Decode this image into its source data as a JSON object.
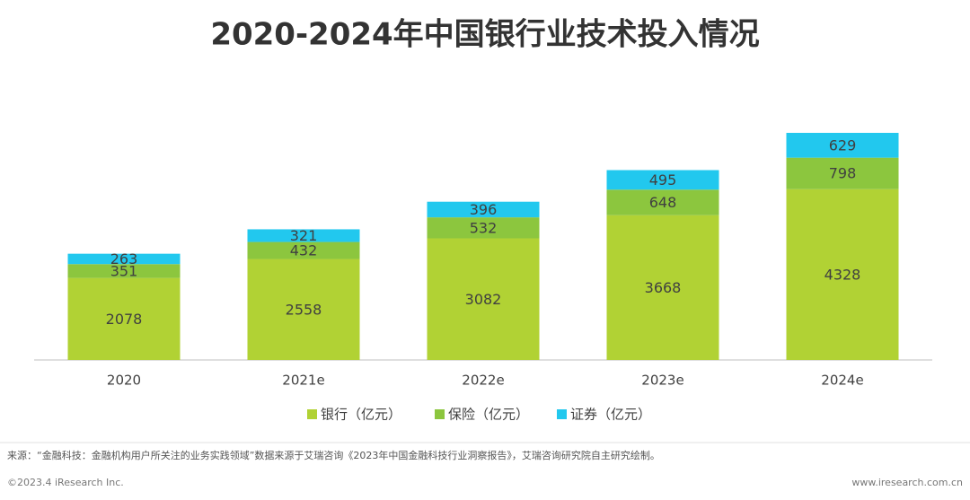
{
  "chart_data": {
    "type": "bar",
    "stacked": true,
    "title": "2020-2024年中国银行业技术投入情况",
    "categories": [
      "2020",
      "2021e",
      "2022e",
      "2023e",
      "2024e"
    ],
    "series": [
      {
        "name": "银行（亿元）",
        "color": "#b1d234",
        "values": [
          2078,
          2558,
          3082,
          3668,
          4328
        ]
      },
      {
        "name": "保险（亿元）",
        "color": "#8cc63e",
        "values": [
          351,
          432,
          532,
          648,
          798
        ]
      },
      {
        "name": "证券（亿元）",
        "color": "#22c8ee",
        "values": [
          263,
          321,
          396,
          495,
          629
        ]
      }
    ],
    "legend": "bottom"
  },
  "footer": {
    "source": "来源：“金融科技：金融机构用户所关注的业务实践领域”数据来源于艾瑞咨询《2023年中国金融科技行业洞察报告》，艾瑞咨询研究院自主研究绘制。",
    "copyright": "©2023.4 iResearch Inc.",
    "website": "www.iresearch.com.cn"
  }
}
